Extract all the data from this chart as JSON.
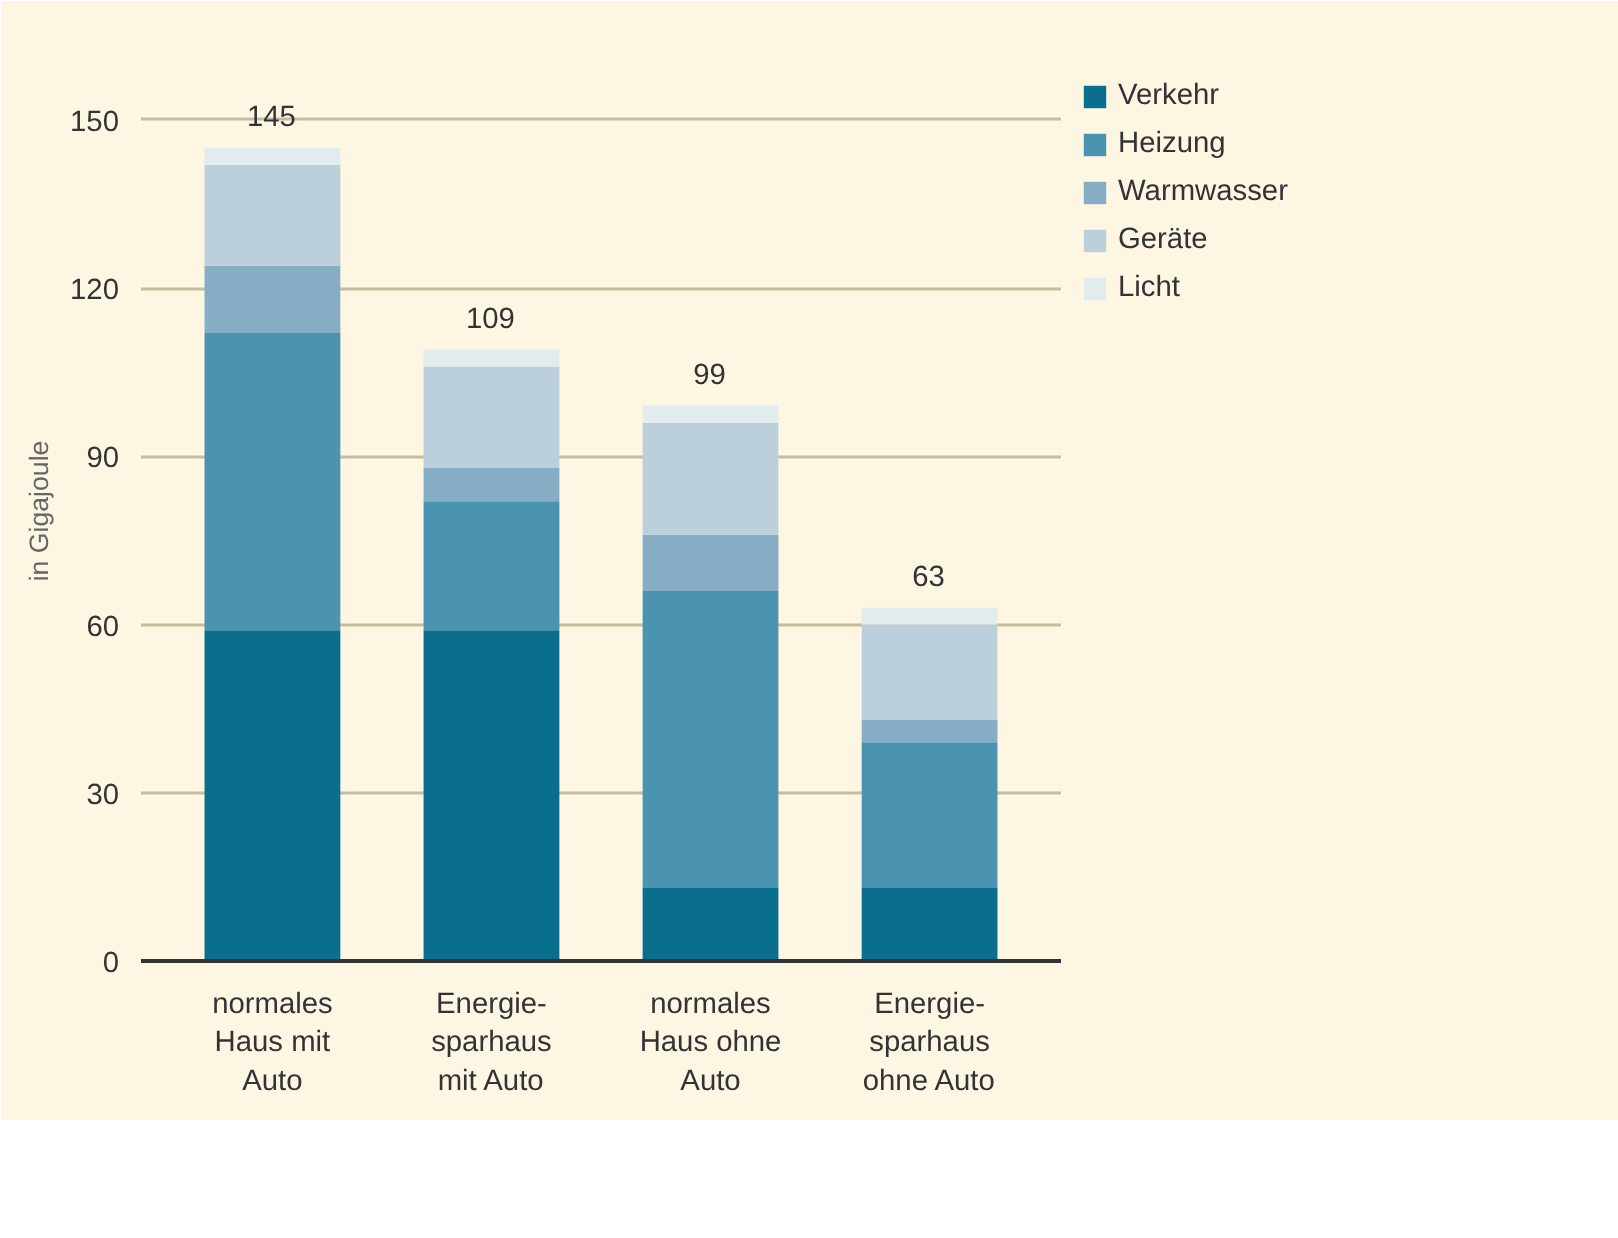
{
  "chart_data": {
    "type": "bar",
    "stacked": true,
    "ylabel": "in Gigajoule",
    "categories": [
      "normales\nHaus mit\nAuto",
      "Energie-\nsparhaus\nmit Auto",
      "normales\nHaus ohne\nAuto",
      "Energie-\nsparhaus\nohne Auto"
    ],
    "series": [
      {
        "name": "Verkehr",
        "color": "#0a6f8f",
        "values": [
          59,
          59,
          13,
          13
        ]
      },
      {
        "name": "Heizung",
        "color": "#4a94b1",
        "values": [
          53,
          23,
          53,
          26
        ]
      },
      {
        "name": "Warmwasser",
        "color": "#86adc4",
        "values": [
          12,
          6,
          10,
          4
        ]
      },
      {
        "name": "Geräte",
        "color": "#bcd0dc",
        "values": [
          18,
          18,
          20,
          17
        ]
      },
      {
        "name": "Licht",
        "color": "#e2ebee",
        "values": [
          3,
          3,
          3,
          3
        ]
      }
    ],
    "totals": [
      "145",
      "109",
      "99",
      "63"
    ],
    "ylim": [
      0,
      150
    ],
    "yticks": [
      0,
      30,
      60,
      90,
      120,
      150
    ],
    "grid": "y",
    "legend": "top right"
  }
}
